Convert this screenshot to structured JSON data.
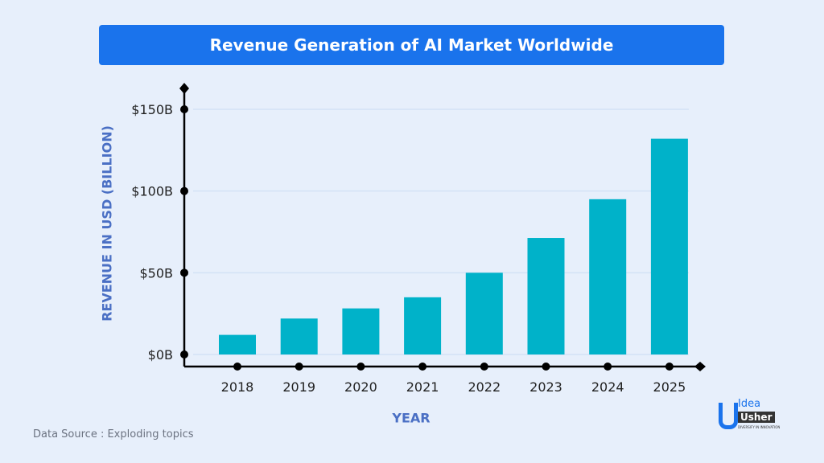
{
  "chart_data": {
    "type": "bar",
    "title": "Revenue Generation of AI Market Worldwide",
    "xlabel": "YEAR",
    "ylabel": "REVENUE IN USD (BILLION)",
    "categories": [
      "2018",
      "2019",
      "2020",
      "2021",
      "2022",
      "2023",
      "2024",
      "2025"
    ],
    "values": [
      12,
      22,
      28.2,
      35,
      50,
      71.3,
      95,
      132
    ],
    "ylim": [
      0,
      150
    ],
    "yticks": [
      0,
      50,
      100,
      150
    ],
    "ytick_labels": [
      "$0B",
      "$50B",
      "$100B",
      "$150B"
    ],
    "grid": true,
    "bar_color": "#00b2c9",
    "title_bg_color": "#1a73ec",
    "axis_label_color": "#4a6fc4"
  },
  "source": "Data Source : Exploding topics",
  "logo": {
    "line1": "Idea",
    "line2": "Usher",
    "tagline": "DIVERSIFY IN INNOVATION"
  }
}
